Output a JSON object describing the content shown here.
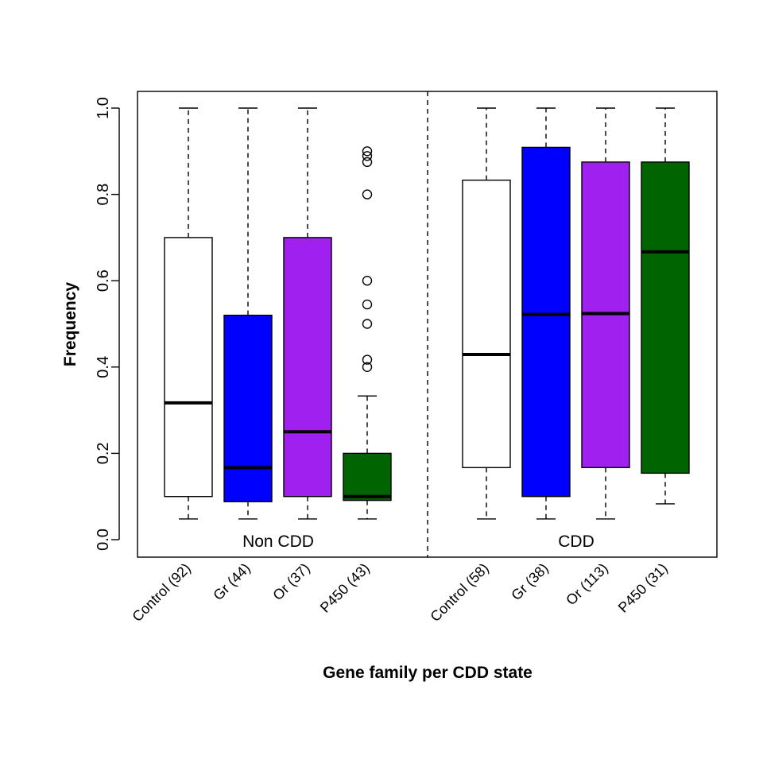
{
  "chart_data": {
    "type": "boxplot",
    "xlabel": "Gene family per CDD state",
    "ylabel": "Frequency",
    "ylim": [
      0.0,
      1.0
    ],
    "yticks": [
      "0.0",
      "0.2",
      "0.4",
      "0.6",
      "0.8",
      "1.0"
    ],
    "groups": [
      {
        "label": "Non CDD"
      },
      {
        "label": "CDD"
      }
    ],
    "boxes": [
      {
        "label": "Control (92)",
        "group": 0,
        "color": "#ffffff",
        "whisker_low": 0.048,
        "q1": 0.1,
        "median": 0.317,
        "q3": 0.7,
        "whisker_high": 1.0,
        "outliers": []
      },
      {
        "label": "Gr (44)",
        "group": 0,
        "color": "#0000ff",
        "whisker_low": 0.048,
        "q1": 0.088,
        "median": 0.167,
        "q3": 0.52,
        "whisker_high": 1.0,
        "outliers": []
      },
      {
        "label": "Or (37)",
        "group": 0,
        "color": "#a020f0",
        "whisker_low": 0.048,
        "q1": 0.1,
        "median": 0.25,
        "q3": 0.7,
        "whisker_high": 1.0,
        "outliers": []
      },
      {
        "label": "P450 (43)",
        "group": 0,
        "color": "#006400",
        "whisker_low": 0.048,
        "q1": 0.091,
        "median": 0.1,
        "q3": 0.2,
        "whisker_high": 0.333,
        "outliers": [
          0.4,
          0.417,
          0.5,
          0.545,
          0.6,
          0.8,
          0.875,
          0.889,
          0.9
        ]
      },
      {
        "label": "Control (58)",
        "group": 1,
        "color": "#ffffff",
        "whisker_low": 0.048,
        "q1": 0.167,
        "median": 0.429,
        "q3": 0.833,
        "whisker_high": 1.0,
        "outliers": []
      },
      {
        "label": "Gr (38)",
        "group": 1,
        "color": "#0000ff",
        "whisker_low": 0.048,
        "q1": 0.1,
        "median": 0.522,
        "q3": 0.909,
        "whisker_high": 1.0,
        "outliers": []
      },
      {
        "label": "Or (113)",
        "group": 1,
        "color": "#a020f0",
        "whisker_low": 0.048,
        "q1": 0.167,
        "median": 0.524,
        "q3": 0.875,
        "whisker_high": 1.0,
        "outliers": []
      },
      {
        "label": "P450 (31)",
        "group": 1,
        "color": "#006400",
        "whisker_low": 0.083,
        "q1": 0.154,
        "median": 0.667,
        "q3": 0.875,
        "whisker_high": 1.0,
        "outliers": []
      }
    ]
  }
}
